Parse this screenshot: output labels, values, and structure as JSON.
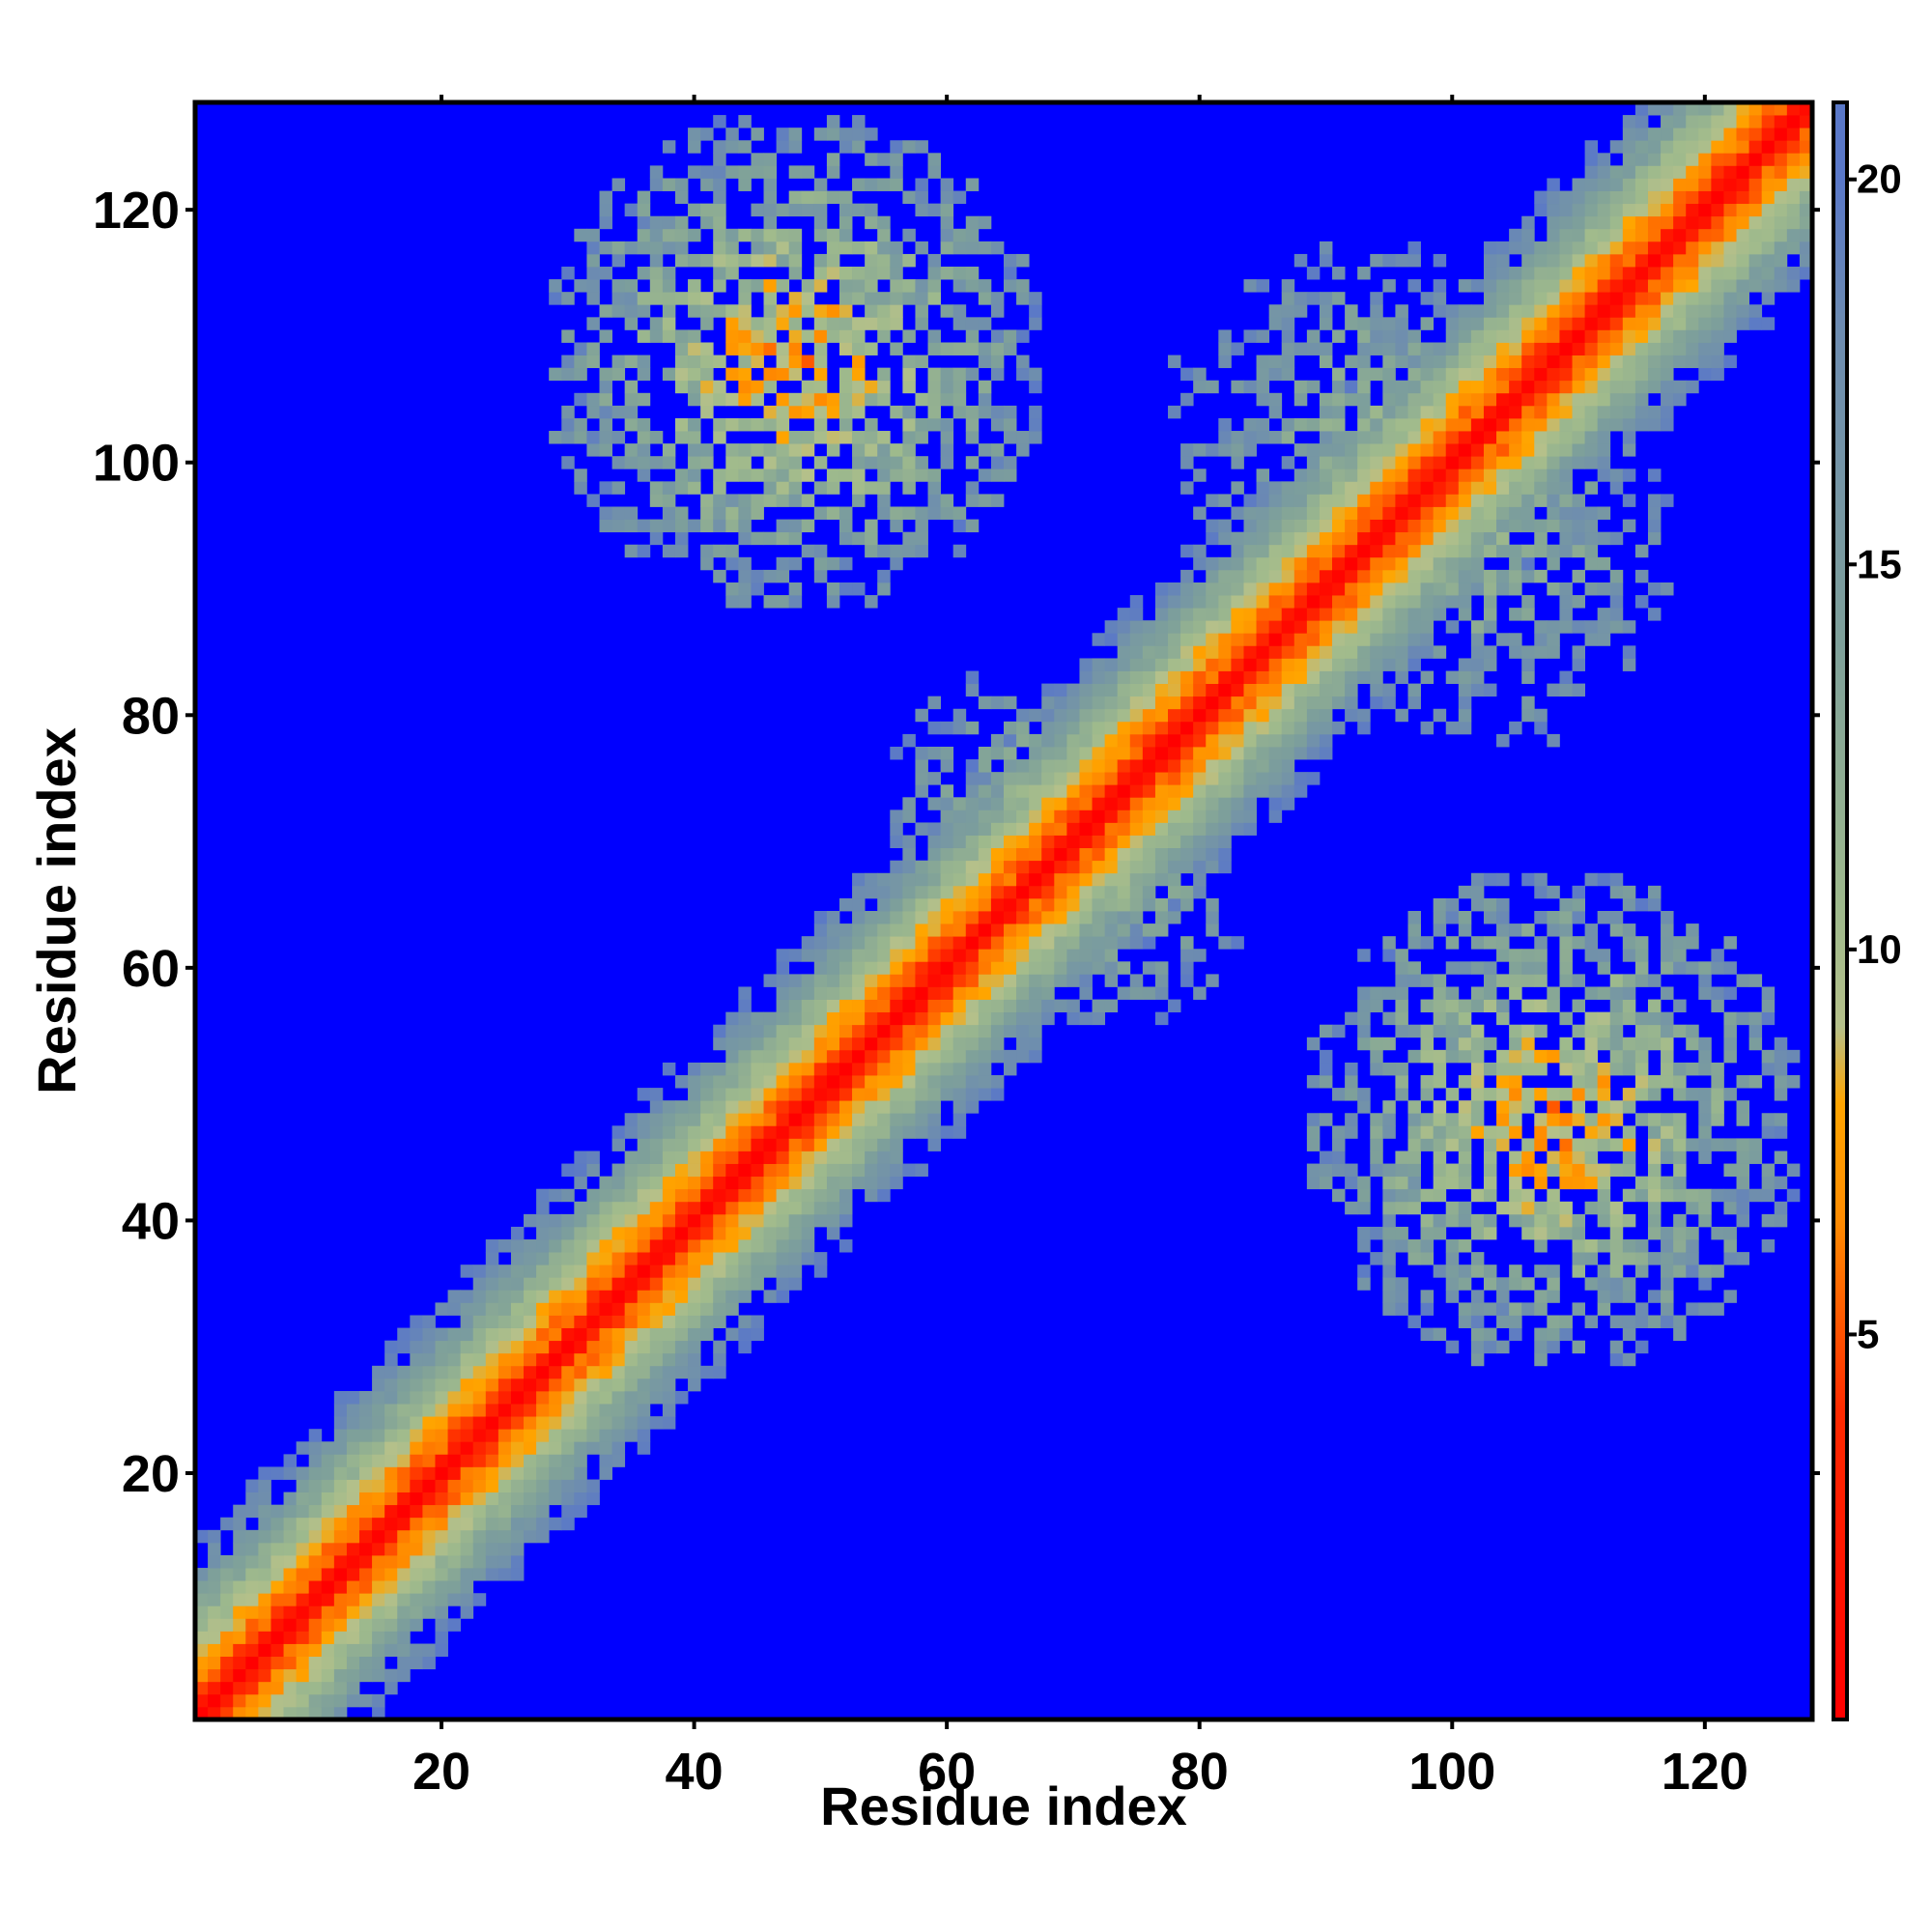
{
  "chart_data": {
    "type": "heatmap",
    "title": "",
    "xlabel": "Residue index",
    "ylabel": "Residue index",
    "xlim": [
      1,
      128
    ],
    "ylim": [
      1,
      128
    ],
    "x_ticks": [
      20,
      40,
      60,
      80,
      100,
      120
    ],
    "y_ticks": [
      20,
      40,
      60,
      80,
      100,
      120
    ],
    "x_tick_labels": [
      "20",
      "40",
      "60",
      "80",
      "100",
      "120"
    ],
    "y_tick_labels": [
      "20",
      "40",
      "60",
      "80",
      "100",
      "120"
    ],
    "grid": false,
    "colorbar": {
      "position": "right",
      "range": [
        0,
        21
      ],
      "ticks": [
        5,
        10,
        15,
        20
      ],
      "tick_labels": [
        "5",
        "10",
        "15",
        "20"
      ],
      "stops": [
        {
          "value": 0,
          "color": "#ff0000"
        },
        {
          "value": 4,
          "color": "#ff2a00"
        },
        {
          "value": 6.5,
          "color": "#ff8c00"
        },
        {
          "value": 8,
          "color": "#ffa500"
        },
        {
          "value": 9,
          "color": "#b5c08a"
        },
        {
          "value": 10.5,
          "color": "#9fba8c"
        },
        {
          "value": 14,
          "color": "#7ea09a"
        },
        {
          "value": 18,
          "color": "#6d8cb0"
        },
        {
          "value": 20,
          "color": "#5a78c8"
        },
        {
          "value": 20.99,
          "color": "#5a78c8"
        },
        {
          "value": 21,
          "color": "#0000ff"
        }
      ]
    },
    "cutoff": 20,
    "features": {
      "diagonal_band": {
        "description": "distance grows with |i-j|; red on the main diagonal, orange/green/steel-blue flanks, blue beyond ~14 residues off-diagonal"
      },
      "off_diagonal_contacts": [
        {
          "x_range": [
            28,
            68
          ],
          "y_range": [
            88,
            128
          ],
          "min_value": 6
        },
        {
          "x_range": [
            86,
            128
          ],
          "y_range": [
            28,
            68
          ],
          "min_value": 6
        },
        {
          "x_range": [
            76,
            118
          ],
          "y_range": [
            80,
            118
          ],
          "min_value": 11
        },
        {
          "x_range": [
            54,
            82
          ],
          "y_range": [
            52,
            80
          ],
          "min_value": 10
        }
      ]
    }
  }
}
